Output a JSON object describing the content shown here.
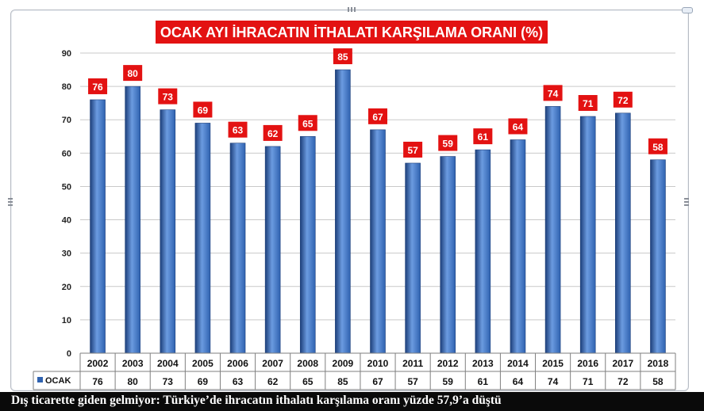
{
  "chart_data": {
    "type": "bar",
    "title": "OCAK AYI İHRACATIN İTHALATI KARŞILAMA ORANI (%)",
    "categories": [
      "2002",
      "2003",
      "2004",
      "2005",
      "2006",
      "2007",
      "2008",
      "2009",
      "2010",
      "2011",
      "2012",
      "2013",
      "2014",
      "2015",
      "2016",
      "2017",
      "2018"
    ],
    "series": [
      {
        "name": "OCAK",
        "values": [
          76,
          80,
          73,
          69,
          63,
          62,
          65,
          85,
          67,
          57,
          59,
          61,
          64,
          74,
          71,
          72,
          58
        ]
      }
    ],
    "ylim": [
      0,
      90
    ],
    "yticks": [
      0,
      10,
      20,
      30,
      40,
      50,
      60,
      70,
      80,
      90
    ],
    "grid": true,
    "data_table": true,
    "colors": {
      "bar": "#2f62b0",
      "bar_light": "#6b9be0",
      "bar_dark": "#1d3f7a",
      "label_bg": "#e31212",
      "title_bg": "#e31212",
      "grid": "#c9c9c9"
    }
  },
  "caption": "Dış ticarette giden gelmiyor: Türkiye’de ihracatın ithalatı karşılama oranı yüzde 57,9’a düştü"
}
